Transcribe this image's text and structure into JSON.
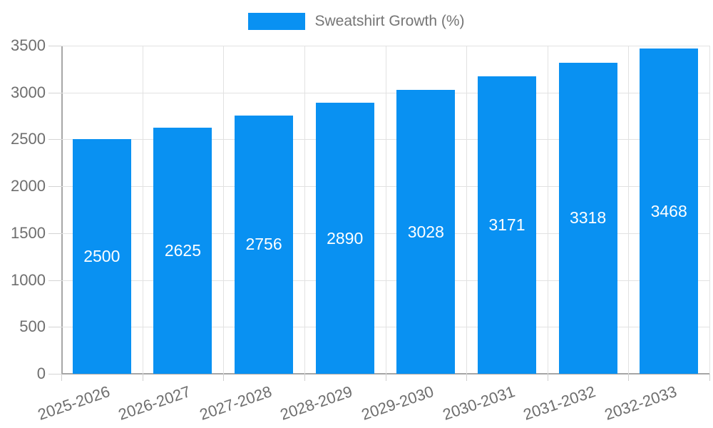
{
  "legend": {
    "label": "Sweatshirt Growth (%)"
  },
  "chart_data": {
    "type": "bar",
    "title": "",
    "xlabel": "",
    "ylabel": "",
    "legend_entries": [
      "Sweatshirt Growth (%)"
    ],
    "legend_position": "top",
    "grid": true,
    "categories": [
      "2025-2026",
      "2026-2027",
      "2027-2028",
      "2028-2029",
      "2029-2030",
      "2030-2031",
      "2031-2032",
      "2032-2033"
    ],
    "values": [
      2500,
      2625,
      2756,
      2890,
      3028,
      3171,
      3318,
      3468
    ],
    "bar_value_labels": [
      "2500",
      "2625",
      "2756",
      "2890",
      "3028",
      "3171",
      "3318",
      "3468"
    ],
    "ylim": [
      0,
      3500
    ],
    "yticks": [
      0,
      500,
      1000,
      1500,
      2000,
      2500,
      3000,
      3500
    ]
  },
  "colors": {
    "bar": "#0991F2",
    "bar_label": "#ffffff",
    "grid": "#e2e2e2",
    "axis": "#a6a6a6",
    "tick_text": "#6e6e6e",
    "legend_text": "#757575",
    "background": "#ffffff"
  }
}
